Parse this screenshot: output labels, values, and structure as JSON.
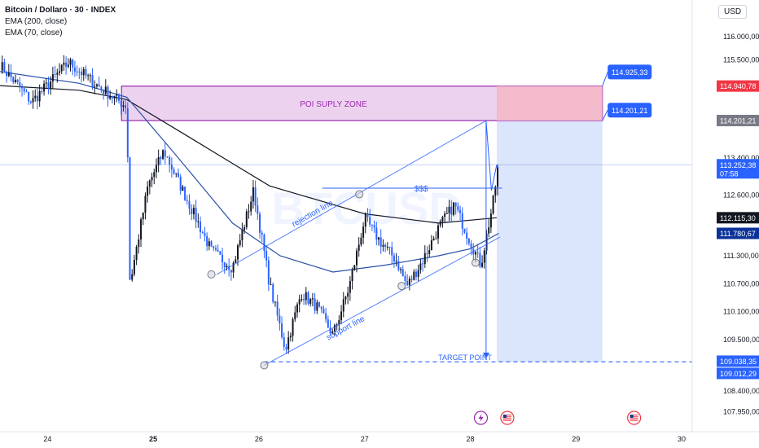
{
  "header": {
    "title": "Bitcoin / Dollaro · 30 · INDEX",
    "indicators": [
      "EMA (200, close)",
      "EMA (70, close)"
    ],
    "currency": "USD"
  },
  "watermark": "BTCUSD",
  "colors": {
    "up_candle": "#131722",
    "down_candle": "#2962ff",
    "ema200": "#131722",
    "ema70": "#2a4fa8",
    "supply_zone_fill": "#ecd2ef",
    "supply_zone_border": "#9c27b0",
    "supply_zone_text": "#9c27b0",
    "target_line": "#2962ff",
    "callout": "#2962ff",
    "short_target_fill": "#dbe5fb",
    "short_stop_fill": "#f3b6c3",
    "crosshair": "#8fa8e8",
    "label_red": "#f23645",
    "label_gray": "#787b86",
    "label_dark": "#131722",
    "label_navy": "#0c3299",
    "label_blue": "#2962ff"
  },
  "chart_data": {
    "type": "candlestick",
    "symbol": "Bitcoin / Dollaro",
    "interval": "30",
    "exchange": "INDEX",
    "x_axis": {
      "tick_labels": [
        "24",
        "25",
        "26",
        "27",
        "28",
        "29",
        "30"
      ],
      "range_days": [
        23.55,
        30.1
      ]
    },
    "y_axis": {
      "tick_labels": [
        "116.000,00",
        "115.500,00",
        "114.200,00",
        "113.400,00",
        "112.600,00",
        "111.300,00",
        "110.700,00",
        "110.100,00",
        "109.500,00",
        "108.400,00",
        "107.950,00"
      ],
      "tick_values": [
        116000,
        115500,
        114200,
        113400,
        112600,
        111300,
        110700,
        110100,
        109500,
        108400,
        107950
      ],
      "range": [
        107700,
        116350
      ]
    },
    "price_labels": [
      {
        "text": "114.940,78",
        "value": 114940.78,
        "style": "red"
      },
      {
        "text": "114.201,21",
        "value": 114201.21,
        "style": "gray"
      },
      {
        "text": "113.252,38",
        "sub": "07:58",
        "value": 113252.38,
        "style": "blue"
      },
      {
        "text": "112.115,30",
        "value": 112115.3,
        "style": "dark"
      },
      {
        "text": "111.780,67",
        "value": 111780.67,
        "style": "navy"
      },
      {
        "text": "109.038,35",
        "value": 109038.35,
        "style": "blue"
      },
      {
        "text": "109.012,29",
        "value": 109012.29,
        "style": "blue"
      }
    ],
    "key_points": [
      {
        "day": 23.55,
        "price": 115400
      },
      {
        "day": 23.85,
        "price": 114600
      },
      {
        "day": 24.2,
        "price": 115450
      },
      {
        "day": 24.5,
        "price": 114900
      },
      {
        "day": 24.75,
        "price": 114500
      },
      {
        "day": 24.78,
        "price": 110700
      },
      {
        "day": 24.95,
        "price": 112800
      },
      {
        "day": 25.1,
        "price": 113550
      },
      {
        "day": 25.3,
        "price": 112600
      },
      {
        "day": 25.55,
        "price": 111400
      },
      {
        "day": 25.75,
        "price": 111050
      },
      {
        "day": 25.95,
        "price": 112700
      },
      {
        "day": 26.1,
        "price": 110700
      },
      {
        "day": 26.25,
        "price": 109300
      },
      {
        "day": 26.4,
        "price": 110500
      },
      {
        "day": 26.55,
        "price": 110200
      },
      {
        "day": 26.7,
        "price": 109600
      },
      {
        "day": 26.85,
        "price": 110600
      },
      {
        "day": 27.0,
        "price": 112100
      },
      {
        "day": 27.15,
        "price": 111600
      },
      {
        "day": 27.3,
        "price": 111200
      },
      {
        "day": 27.4,
        "price": 110650
      },
      {
        "day": 27.55,
        "price": 111200
      },
      {
        "day": 27.7,
        "price": 111900
      },
      {
        "day": 27.85,
        "price": 112400
      },
      {
        "day": 28.0,
        "price": 111600
      },
      {
        "day": 28.1,
        "price": 111100
      },
      {
        "day": 28.22,
        "price": 112500
      },
      {
        "day": 28.27,
        "price": 113350
      }
    ],
    "ema200_points": [
      {
        "day": 23.55,
        "price": 114950
      },
      {
        "day": 24.3,
        "price": 114850
      },
      {
        "day": 24.75,
        "price": 114650
      },
      {
        "day": 25.3,
        "price": 113900
      },
      {
        "day": 26.1,
        "price": 112800
      },
      {
        "day": 27.0,
        "price": 112200
      },
      {
        "day": 27.7,
        "price": 112000
      },
      {
        "day": 28.25,
        "price": 112115
      }
    ],
    "ema70_points": [
      {
        "day": 23.55,
        "price": 115250
      },
      {
        "day": 24.3,
        "price": 115000
      },
      {
        "day": 24.75,
        "price": 114700
      },
      {
        "day": 25.2,
        "price": 113500
      },
      {
        "day": 25.75,
        "price": 112000
      },
      {
        "day": 26.2,
        "price": 111300
      },
      {
        "day": 26.7,
        "price": 110950
      },
      {
        "day": 27.2,
        "price": 111100
      },
      {
        "day": 27.7,
        "price": 111300
      },
      {
        "day": 28.0,
        "price": 111450
      },
      {
        "day": 28.27,
        "price": 111780
      }
    ],
    "annotations": {
      "supply_zone": {
        "label": "POI SUPLY ZONE",
        "day_from": 24.7,
        "day_to": 29.25,
        "price_top": 114940,
        "price_bottom": 114200
      },
      "rejection_line": {
        "label": "rejection line",
        "from": {
          "day": 25.6,
          "price": 110900
        },
        "to": {
          "day": 28.15,
          "price": 114200
        }
      },
      "support_line": {
        "label": "support line",
        "from": {
          "day": 26.05,
          "price": 108950
        },
        "to": {
          "day": 28.28,
          "price": 111700
        }
      },
      "liquidity_line": {
        "label": "$$$",
        "day_from": 26.6,
        "day_to": 28.3,
        "price": 112750
      },
      "target_line": {
        "label": "TARGET POINT",
        "day_from": 26.05,
        "day_to": 30.1,
        "price": 109025
      },
      "projection_path": [
        {
          "day": 28.25,
          "price": 113250
        },
        {
          "day": 28.2,
          "price": 112700
        },
        {
          "day": 28.15,
          "price": 114200
        },
        {
          "day": 28.15,
          "price": 109100
        }
      ],
      "short_position": {
        "day_from": 28.25,
        "day_to": 29.25,
        "entry": 114200,
        "stop": 114940,
        "target": 109025
      },
      "callouts": [
        {
          "text": "114.925,33",
          "day": 29.3,
          "price": 115400
        },
        {
          "text": "114.201,21",
          "day": 29.3,
          "price": 114580
        }
      ],
      "markers": [
        {
          "day": 25.55,
          "price": 110900
        },
        {
          "day": 26.05,
          "price": 108950
        },
        {
          "day": 26.95,
          "price": 112620
        },
        {
          "day": 27.35,
          "price": 110650
        },
        {
          "day": 28.05,
          "price": 111150
        }
      ],
      "event_icons": [
        {
          "type": "lightning",
          "day": 28.1
        },
        {
          "type": "flag",
          "day": 28.35
        },
        {
          "type": "flag",
          "day": 29.55
        }
      ]
    }
  }
}
